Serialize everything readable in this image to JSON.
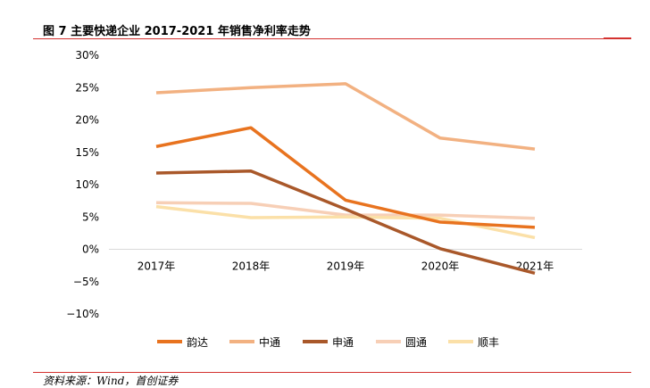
{
  "header": {
    "title": "图 7 主要快递企业 2017-2021 年销售净利率走势"
  },
  "footer": {
    "source": "资料来源：Wind，首创证券"
  },
  "chart_data": {
    "type": "line",
    "title": "图 7 主要快递企业 2017-2021 年销售净利率走势",
    "categories": [
      "2017年",
      "2018年",
      "2019年",
      "2020年",
      "2021年"
    ],
    "ylim": [
      -10,
      30
    ],
    "yticks": [
      30,
      25,
      20,
      15,
      10,
      5,
      0,
      -5,
      -10
    ],
    "ytick_labels": [
      "30%",
      "25%",
      "20%",
      "15%",
      "10%",
      "5%",
      "0%",
      "−5%",
      "−10%"
    ],
    "grid": false,
    "legend_position": "bottom",
    "series": [
      {
        "name": "韵达",
        "color": "#e8731f",
        "values": [
          15.9,
          18.8,
          7.6,
          4.2,
          3.4
        ]
      },
      {
        "name": "中通",
        "color": "#f2b181",
        "values": [
          24.2,
          25.0,
          25.6,
          17.2,
          15.5
        ]
      },
      {
        "name": "申通",
        "color": "#a9582a",
        "values": [
          11.8,
          12.1,
          6.2,
          0.1,
          -3.7
        ]
      },
      {
        "name": "圆通",
        "color": "#f7cfb6",
        "values": [
          7.2,
          7.1,
          5.3,
          5.3,
          4.8
        ]
      },
      {
        "name": "顺丰",
        "color": "#fbe0a8",
        "values": [
          6.6,
          4.9,
          5.0,
          4.8,
          1.8
        ]
      }
    ]
  }
}
